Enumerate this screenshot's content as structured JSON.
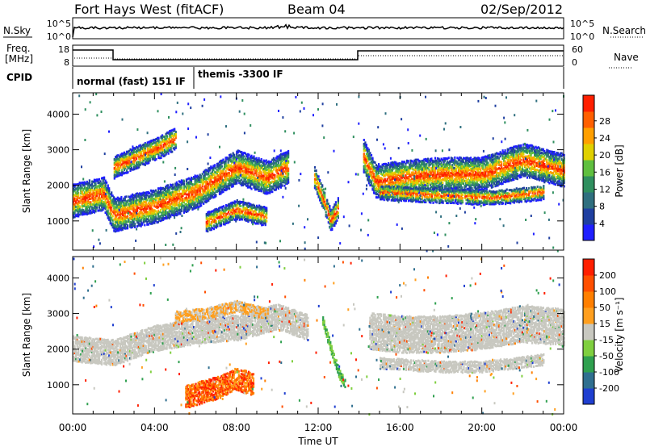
{
  "header": {
    "title": "Fort Hays West (fitACF)",
    "beam": "Beam 04",
    "date": "02/Sep/2012"
  },
  "strips": {
    "nsky_label": "N.Sky",
    "nsearch_label": "N.Search",
    "noise_ticks_left": [
      "10^5",
      "10^0"
    ],
    "noise_ticks_right": [
      "10^5",
      "10^0"
    ],
    "freq_label": "Freq.",
    "freq_unit": "[MHz]",
    "freq_ticks": [
      "18",
      "8"
    ],
    "nave_label": "Nave",
    "nave_ticks": [
      "60",
      "0"
    ],
    "cpid_label": "CPID",
    "cpid_segments": [
      "normal (fast) 151 IF",
      "themis -3300 IF"
    ]
  },
  "colors": {
    "power_scale": [
      "#1f1fff",
      "#1f3fa0",
      "#2f6f7f",
      "#2f8f5f",
      "#5fbf3f",
      "#e0d000",
      "#ff9f00",
      "#ff5f00",
      "#ff1f00"
    ],
    "velocity_scale": [
      "#1f3fd0",
      "#2f6f8f",
      "#2fa04f",
      "#7fcf3f",
      "#c8c8c0",
      "#ff9f1f",
      "#ff7f00",
      "#ff4f00",
      "#ff1f00"
    ],
    "ground_scatter": "#c8c8c0"
  },
  "chart_data": [
    {
      "type": "heatmap",
      "name": "power",
      "ylabel": "Slant Range [km]",
      "xlabel": "Time UT",
      "x_ticks": [
        "00:00",
        "04:00",
        "08:00",
        "12:00",
        "16:00",
        "20:00",
        "00:00"
      ],
      "x_range_hours": [
        0,
        24
      ],
      "y_range_km": [
        180,
        4600
      ],
      "y_ticks": [
        "1000",
        "2000",
        "3000",
        "4000"
      ],
      "colorbar_label": "Power [dB]",
      "colorbar_ticks": [
        "4",
        "8",
        "12",
        "16",
        "20",
        "24",
        "28"
      ],
      "colorbar_range": [
        0,
        30
      ],
      "bands": [
        {
          "t": [
            0,
            1.5,
            2.0,
            4,
            6,
            8,
            9.5,
            10.5
          ],
          "r": [
            1550,
            1750,
            1150,
            1400,
            1800,
            2500,
            2200,
            2500
          ],
          "w": 450
        },
        {
          "t": [
            6.5,
            8,
            9.5
          ],
          "r": [
            950,
            1300,
            1100
          ],
          "w": 250
        },
        {
          "t": [
            2,
            4,
            5
          ],
          "r": [
            2500,
            3000,
            3300
          ],
          "w": 300
        },
        {
          "t": [
            11.8,
            12.3,
            12.6,
            13.0
          ],
          "r": [
            2200,
            1500,
            1000,
            1400
          ],
          "w": 300
        },
        {
          "t": [
            14.2,
            14.8,
            16,
            18,
            20,
            22,
            24
          ],
          "r": [
            2800,
            2100,
            2200,
            2300,
            2300,
            2700,
            2400
          ],
          "w": 450
        },
        {
          "t": [
            15,
            18,
            20.5,
            23
          ],
          "r": [
            1800,
            1700,
            1650,
            1800
          ],
          "w": 200
        }
      ]
    },
    {
      "type": "heatmap",
      "name": "velocity",
      "ylabel": "Slant Range [km]",
      "xlabel": "Time UT",
      "x_ticks": [
        "00:00",
        "04:00",
        "08:00",
        "12:00",
        "16:00",
        "20:00",
        "00:00"
      ],
      "x_range_hours": [
        0,
        24
      ],
      "y_range_km": [
        180,
        4600
      ],
      "y_ticks": [
        "1000",
        "2000",
        "3000",
        "4000"
      ],
      "colorbar_label": "Velocity [m s⁻¹]",
      "colorbar_ticks": [
        "200",
        "100",
        "50",
        "15",
        "-15",
        "-50",
        "-100",
        "-200"
      ],
      "colorbar_range": [
        -250,
        250
      ],
      "bands": [
        {
          "t": [
            0,
            2,
            4,
            6,
            8,
            10,
            11.5
          ],
          "r": [
            2000,
            1900,
            2300,
            2500,
            2600,
            2900,
            2600
          ],
          "w": 350,
          "kind": "ground"
        },
        {
          "t": [
            5,
            6.5,
            8,
            9.5
          ],
          "r": [
            2900,
            3000,
            3200,
            3000
          ],
          "w": 150,
          "kind": "neg"
        },
        {
          "t": [
            5.5,
            7,
            8,
            8.8
          ],
          "r": [
            650,
            900,
            1150,
            1000
          ],
          "w": 300,
          "kind": "away"
        },
        {
          "t": [
            12.2,
            12.6,
            13.0,
            13.3
          ],
          "r": [
            2800,
            2000,
            1300,
            1000
          ],
          "w": 120,
          "kind": "toward"
        },
        {
          "t": [
            14.5,
            16,
            18,
            20,
            22,
            24
          ],
          "r": [
            2500,
            2400,
            2400,
            2500,
            2700,
            2600
          ],
          "w": 500,
          "kind": "ground"
        },
        {
          "t": [
            15,
            18,
            20,
            23
          ],
          "r": [
            1600,
            1500,
            1500,
            1700
          ],
          "w": 150,
          "kind": "ground"
        }
      ]
    }
  ]
}
